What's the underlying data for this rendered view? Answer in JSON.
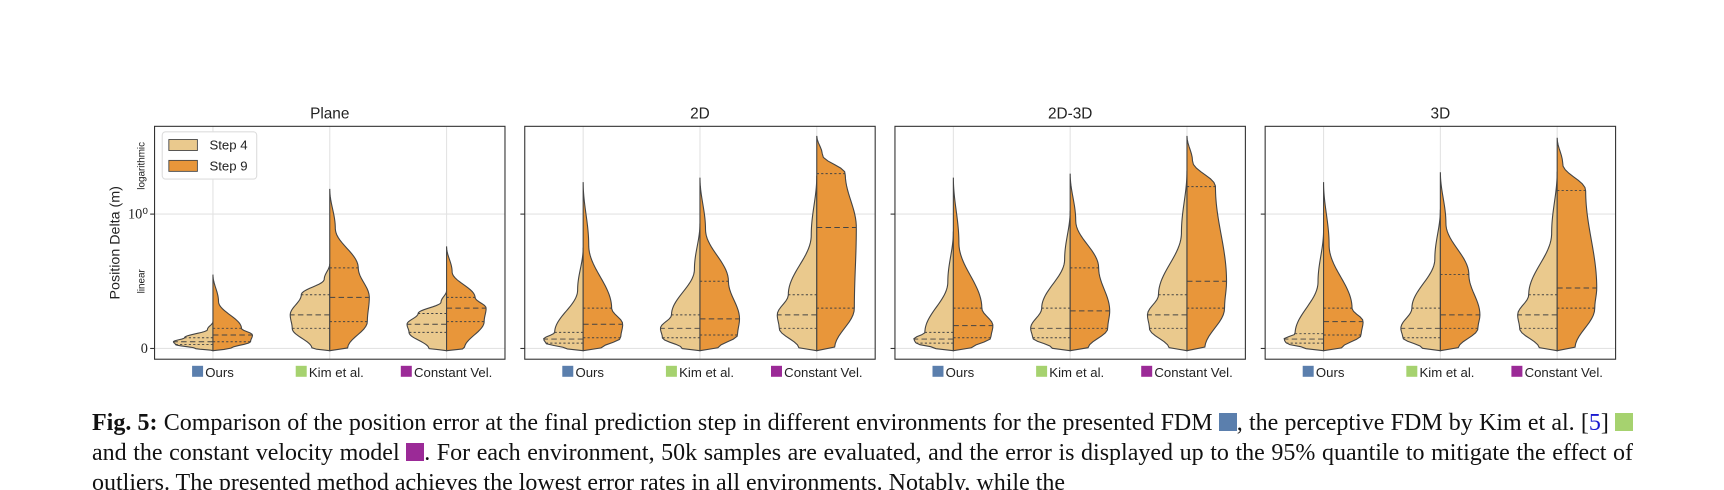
{
  "chart_data": [
    {
      "type": "violin",
      "title": "Plane",
      "ylabel": "Position Delta (m)",
      "ylabel_linear": "linear",
      "ylabel_log": "logarithmic",
      "yscale": "symlog",
      "linthresh": 1,
      "ylim": [
        -0.08,
        4.5
      ],
      "yticks": [
        0,
        {
          "value": 1,
          "label": "10⁰"
        }
      ],
      "grid": true,
      "legend": "upper left",
      "categories": [
        "Ours",
        "Kim et al.",
        "Constant Vel."
      ],
      "category_colors": [
        "#5b7fad",
        "#a6d26f",
        "#9b2a97"
      ],
      "series": [
        {
          "name": "Step 4",
          "color": "#eac98d",
          "top": [
            0.2,
            0.63,
            0.43
          ],
          "q1": [
            0.03,
            0.15,
            0.12
          ],
          "median": [
            0.05,
            0.25,
            0.18
          ],
          "q3": [
            0.08,
            0.4,
            0.26
          ]
        },
        {
          "name": "Step 9",
          "color": "#e8963a",
          "top": [
            0.55,
            1.54,
            0.76
          ],
          "q1": [
            0.05,
            0.2,
            0.2
          ],
          "median": [
            0.1,
            0.38,
            0.3
          ],
          "q3": [
            0.15,
            0.6,
            0.38
          ]
        }
      ]
    },
    {
      "type": "violin",
      "title": "2D",
      "yscale": "symlog",
      "linthresh": 1,
      "ylim": [
        -0.08,
        4.5
      ],
      "yticks": [
        0,
        1
      ],
      "grid": true,
      "categories": [
        "Ours",
        "Kim et al.",
        "Constant Vel."
      ],
      "category_colors": [
        "#5b7fad",
        "#a6d26f",
        "#9b2a97"
      ],
      "series": [
        {
          "top": [
            0.75,
            0.93,
            1.93
          ],
          "q1": [
            0.04,
            0.08,
            0.15
          ],
          "median": [
            0.07,
            0.15,
            0.25
          ],
          "q3": [
            0.12,
            0.25,
            0.4
          ]
        },
        {
          "top": [
            1.73,
            1.87,
            3.82
          ],
          "q1": [
            0.08,
            0.1,
            0.3
          ],
          "median": [
            0.18,
            0.22,
            0.9
          ],
          "q3": [
            0.3,
            0.5,
            2.0
          ]
        }
      ]
    },
    {
      "type": "violin",
      "title": "2D-3D",
      "yscale": "symlog",
      "linthresh": 1,
      "ylim": [
        -0.08,
        4.5
      ],
      "yticks": [
        0,
        1
      ],
      "grid": true,
      "categories": [
        "Ours",
        "Kim et al.",
        "Constant Vel."
      ],
      "category_colors": [
        "#5b7fad",
        "#a6d26f",
        "#9b2a97"
      ],
      "series": [
        {
          "top": [
            0.87,
            1.06,
            2.1
          ],
          "q1": [
            0.04,
            0.08,
            0.15
          ],
          "median": [
            0.07,
            0.15,
            0.25
          ],
          "q3": [
            0.12,
            0.3,
            0.4
          ]
        },
        {
          "top": [
            1.87,
            2.0,
            3.82
          ],
          "q1": [
            0.08,
            0.15,
            0.3
          ],
          "median": [
            0.17,
            0.28,
            0.5
          ],
          "q3": [
            0.3,
            0.6,
            1.6
          ]
        }
      ]
    },
    {
      "type": "violin",
      "title": "3D",
      "yscale": "symlog",
      "linthresh": 1,
      "ylim": [
        -0.08,
        4.5
      ],
      "yticks": [
        0,
        1
      ],
      "grid": true,
      "categories": [
        "Ours",
        "Kim et al.",
        "Constant Vel."
      ],
      "category_colors": [
        "#5b7fad",
        "#a6d26f",
        "#9b2a97"
      ],
      "series": [
        {
          "top": [
            0.88,
            1.08,
            2.07
          ],
          "q1": [
            0.04,
            0.08,
            0.15
          ],
          "median": [
            0.07,
            0.15,
            0.25
          ],
          "q3": [
            0.11,
            0.3,
            0.4
          ]
        },
        {
          "top": [
            1.73,
            2.05,
            3.7
          ],
          "q1": [
            0.1,
            0.15,
            0.3
          ],
          "median": [
            0.2,
            0.25,
            0.45
          ],
          "q3": [
            0.3,
            0.55,
            1.5
          ]
        }
      ]
    }
  ],
  "caption": {
    "label": "Fig. 5:",
    "segments": [
      "Comparison of the position error at the final prediction step in different environments for the presented FDM",
      ", the perceptive FDM by Kim et al. [",
      "5",
      "]",
      "and the constant velocity model",
      ". For each environment, 50k samples are evaluated, and the error is displayed up to the 95% quantile to mitigate the effect of outliers. The presented method achieves the lowest error rates in all environments. Notably, while the"
    ]
  }
}
